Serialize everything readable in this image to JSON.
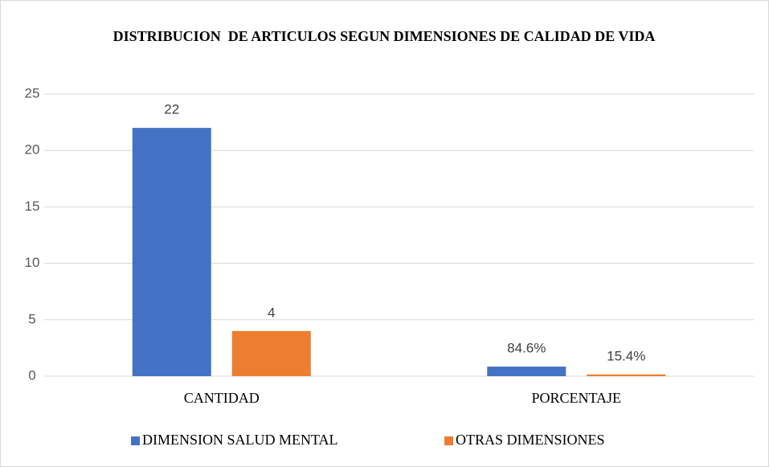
{
  "chart_data": {
    "type": "bar",
    "title": "DISTRIBUCION  DE ARTICULOS SEGUN DIMENSIONES DE CALIDAD DE VIDA",
    "categories": [
      "CANTIDAD",
      "PORCENTAJE"
    ],
    "series": [
      {
        "name": "DIMENSION SALUD MENTAL",
        "color": "#4472c4",
        "values": [
          22,
          0.846
        ],
        "value_labels": [
          "22",
          "84.6%"
        ]
      },
      {
        "name": "OTRAS DIMENSIONES",
        "color": "#ed7d31",
        "values": [
          4,
          0.154
        ],
        "value_labels": [
          "4",
          "15.4%"
        ]
      }
    ],
    "ylim": [
      0,
      25
    ],
    "yticks": [
      0,
      5,
      10,
      15,
      20,
      25
    ],
    "grid": true,
    "legend": "bottom"
  }
}
